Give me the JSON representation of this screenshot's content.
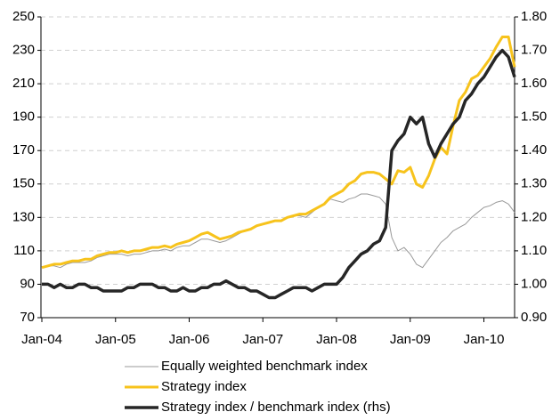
{
  "chart_data": {
    "type": "line",
    "x": [
      "2004-01",
      "2004-02",
      "2004-03",
      "2004-04",
      "2004-05",
      "2004-06",
      "2004-07",
      "2004-08",
      "2004-09",
      "2004-10",
      "2004-11",
      "2004-12",
      "2005-01",
      "2005-02",
      "2005-03",
      "2005-04",
      "2005-05",
      "2005-06",
      "2005-07",
      "2005-08",
      "2005-09",
      "2005-10",
      "2005-11",
      "2005-12",
      "2006-01",
      "2006-02",
      "2006-03",
      "2006-04",
      "2006-05",
      "2006-06",
      "2006-07",
      "2006-08",
      "2006-09",
      "2006-10",
      "2006-11",
      "2006-12",
      "2007-01",
      "2007-02",
      "2007-03",
      "2007-04",
      "2007-05",
      "2007-06",
      "2007-07",
      "2007-08",
      "2007-09",
      "2007-10",
      "2007-11",
      "2007-12",
      "2008-01",
      "2008-02",
      "2008-03",
      "2008-04",
      "2008-05",
      "2008-06",
      "2008-07",
      "2008-08",
      "2008-09",
      "2008-10",
      "2008-11",
      "2008-12",
      "2009-01",
      "2009-02",
      "2009-03",
      "2009-04",
      "2009-05",
      "2009-06",
      "2009-07",
      "2009-08",
      "2009-09",
      "2009-10",
      "2009-11",
      "2009-12",
      "2010-01",
      "2010-02",
      "2010-03",
      "2010-04",
      "2010-05",
      "2010-06"
    ],
    "xlim": [
      "2004-01",
      "2010-06"
    ],
    "xticks": [
      {
        "value": "2004-01",
        "label": "Jan-04"
      },
      {
        "value": "2005-01",
        "label": "Jan-05"
      },
      {
        "value": "2006-01",
        "label": "Jan-06"
      },
      {
        "value": "2007-01",
        "label": "Jan-07"
      },
      {
        "value": "2008-01",
        "label": "Jan-08"
      },
      {
        "value": "2009-01",
        "label": "Jan-09"
      },
      {
        "value": "2010-01",
        "label": "Jan-10"
      }
    ],
    "ylim": [
      70,
      250
    ],
    "yticks": [
      70,
      90,
      110,
      130,
      150,
      170,
      190,
      210,
      230,
      250
    ],
    "y2lim": [
      0.9,
      1.8
    ],
    "y2ticks": [
      {
        "value": 0.9,
        "label": "0.90"
      },
      {
        "value": 1.0,
        "label": "1.00"
      },
      {
        "value": 1.1,
        "label": "1.10"
      },
      {
        "value": 1.2,
        "label": "1.20"
      },
      {
        "value": 1.3,
        "label": "1.30"
      },
      {
        "value": 1.4,
        "label": "1.40"
      },
      {
        "value": 1.5,
        "label": "1.50"
      },
      {
        "value": 1.6,
        "label": "1.60"
      },
      {
        "value": 1.7,
        "label": "1.70"
      },
      {
        "value": 1.8,
        "label": "1.80"
      }
    ],
    "grid": true,
    "legend": "bottom",
    "series": [
      {
        "name": "Equally weighted benchmark index",
        "color": "#999999",
        "width": 1,
        "values": [
          100,
          101,
          101,
          100,
          102,
          103,
          103,
          103,
          104,
          106,
          107,
          108,
          108,
          108,
          107,
          108,
          108,
          109,
          110,
          110,
          111,
          110,
          112,
          113,
          113,
          115,
          117,
          117,
          116,
          115,
          116,
          118,
          120,
          122,
          123,
          125,
          126,
          127,
          128,
          128,
          130,
          131,
          131,
          130,
          133,
          136,
          138,
          141,
          140,
          139,
          141,
          142,
          144,
          144,
          143,
          142,
          138,
          118,
          110,
          112,
          108,
          102,
          100,
          105,
          110,
          115,
          118,
          122,
          124,
          126,
          130,
          133,
          136,
          137,
          139,
          140,
          138,
          133
        ]
      },
      {
        "name": "Strategy index",
        "color": "#f7c31c",
        "width": 3,
        "values": [
          100,
          101,
          102,
          102,
          103,
          104,
          104,
          105,
          105,
          107,
          108,
          109,
          109,
          110,
          109,
          110,
          110,
          111,
          112,
          112,
          113,
          112,
          114,
          115,
          116,
          118,
          120,
          121,
          119,
          117,
          118,
          119,
          121,
          122,
          123,
          125,
          126,
          127,
          128,
          128,
          130,
          131,
          132,
          132,
          134,
          136,
          138,
          142,
          144,
          146,
          150,
          152,
          156,
          157,
          157,
          156,
          153,
          150,
          158,
          157,
          160,
          150,
          148,
          155,
          165,
          172,
          168,
          185,
          200,
          205,
          213,
          215,
          220,
          225,
          232,
          238,
          238,
          220
        ]
      },
      {
        "name": "Strategy index / benchmark index (rhs)",
        "color": "#262626",
        "width": 3.5,
        "axis": "y2",
        "values": [
          1.0,
          1.0,
          0.99,
          1.0,
          0.99,
          0.99,
          1.0,
          1.0,
          0.99,
          0.99,
          0.98,
          0.98,
          0.98,
          0.98,
          0.99,
          0.99,
          1.0,
          1.0,
          1.0,
          0.99,
          0.99,
          0.98,
          0.98,
          0.99,
          0.98,
          0.98,
          0.99,
          0.99,
          1.0,
          1.0,
          1.01,
          1.0,
          0.99,
          0.99,
          0.98,
          0.98,
          0.97,
          0.96,
          0.96,
          0.97,
          0.98,
          0.99,
          0.99,
          0.99,
          0.98,
          0.99,
          1.0,
          1.0,
          1.0,
          1.02,
          1.05,
          1.07,
          1.09,
          1.1,
          1.12,
          1.13,
          1.17,
          1.4,
          1.43,
          1.45,
          1.5,
          1.48,
          1.5,
          1.42,
          1.38,
          1.42,
          1.45,
          1.48,
          1.5,
          1.55,
          1.57,
          1.6,
          1.62,
          1.65,
          1.68,
          1.7,
          1.68,
          1.62
        ]
      }
    ]
  }
}
